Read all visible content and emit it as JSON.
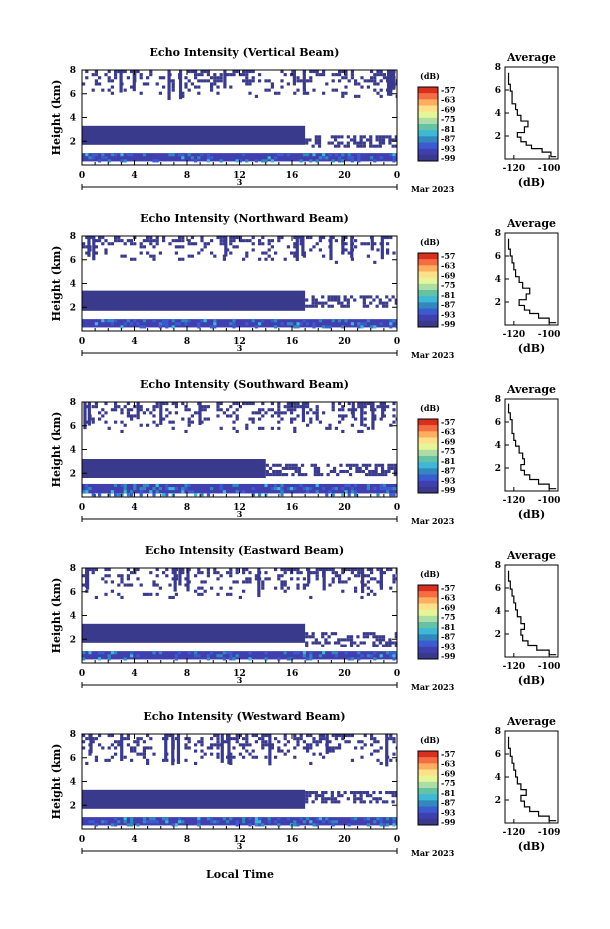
{
  "figure": {
    "xlabel": "Local Time",
    "date_label": "3",
    "month_label": "Mar 2023"
  },
  "colorbar": {
    "unit": "(dB)",
    "ticks": [
      "-57",
      "-63",
      "-69",
      "-75",
      "-81",
      "-87",
      "-93",
      "-99"
    ],
    "colors": [
      "#d7301f",
      "#f46d43",
      "#fdae61",
      "#fee08b",
      "#e6f598",
      "#abdda4",
      "#66c2a5",
      "#3fb7d6",
      "#3288bd",
      "#3b5bd0",
      "#3f3fb0",
      "#3a3a8c"
    ]
  },
  "chart_data": [
    {
      "type": "heatmap",
      "title": "Echo Intensity (Vertical Beam)",
      "xlabel": "",
      "ylabel": "Height (km)",
      "xlim": [
        0,
        24
      ],
      "ylim": [
        0,
        8
      ],
      "xticks": [
        "0",
        "4",
        "8",
        "12",
        "16",
        "20",
        "0"
      ],
      "yticks": [
        "2",
        "4",
        "6",
        "8"
      ],
      "layers": [
        {
          "from_hour": 0,
          "to_hour": 24,
          "y_bottom": 0.3,
          "y_top": 1.0,
          "level": "strong"
        },
        {
          "from_hour": 0,
          "to_hour": 17,
          "y_bottom": 1.7,
          "y_top": 3.3,
          "level": "weak"
        },
        {
          "from_hour": 17,
          "to_hour": 24,
          "y_bottom": 1.6,
          "y_top": 2.5,
          "level": "sparse"
        },
        {
          "from_hour": 0,
          "to_hour": 24,
          "y_bottom": 5.7,
          "y_top": 8.0,
          "level": "sparse"
        }
      ],
      "profile": {
        "title": "Average",
        "xlabel": "(dB)",
        "xticks": [
          "-120",
          "-100"
        ],
        "yticks": [
          "2",
          "4",
          "6",
          "8"
        ],
        "xlim": [
          -125,
          -95
        ],
        "ylim": [
          0,
          8
        ],
        "x": [
          -96,
          -99,
          -104,
          -110,
          -113,
          -116,
          -118,
          -114,
          -112,
          -116,
          -118,
          -119,
          -121,
          -121,
          -122,
          -123
        ],
        "y": [
          0.2,
          0.6,
          0.9,
          1.2,
          1.5,
          1.9,
          2.3,
          2.8,
          3.3,
          3.8,
          4.3,
          4.8,
          5.3,
          5.9,
          6.5,
          7.5
        ]
      }
    },
    {
      "type": "heatmap",
      "title": "Echo Intensity (Northward Beam)",
      "xlabel": "",
      "ylabel": "Height (km)",
      "xlim": [
        0,
        24
      ],
      "ylim": [
        0,
        8
      ],
      "xticks": [
        "0",
        "4",
        "8",
        "12",
        "16",
        "20",
        "0"
      ],
      "yticks": [
        "2",
        "4",
        "6",
        "8"
      ],
      "layers": [
        {
          "from_hour": 0,
          "to_hour": 24,
          "y_bottom": 0.3,
          "y_top": 1.0,
          "level": "strong"
        },
        {
          "from_hour": 0,
          "to_hour": 17,
          "y_bottom": 1.7,
          "y_top": 3.4,
          "level": "weak"
        },
        {
          "from_hour": 17,
          "to_hour": 24,
          "y_bottom": 2.2,
          "y_top": 3.0,
          "level": "sparse"
        },
        {
          "from_hour": 0,
          "to_hour": 24,
          "y_bottom": 5.8,
          "y_top": 8.0,
          "level": "sparse"
        }
      ],
      "profile": {
        "title": "Average",
        "xlabel": "(dB)",
        "xticks": [
          "-120",
          "-100"
        ],
        "yticks": [
          "2",
          "4",
          "6",
          "8"
        ],
        "xlim": [
          -125,
          -95
        ],
        "ylim": [
          0,
          8
        ],
        "x": [
          -96,
          -100,
          -106,
          -111,
          -114,
          -117,
          -113,
          -111,
          -115,
          -117,
          -119,
          -120,
          -121,
          -122,
          -123
        ],
        "y": [
          0.2,
          0.6,
          1.0,
          1.3,
          1.7,
          2.2,
          2.7,
          3.2,
          3.7,
          4.2,
          4.8,
          5.4,
          6.0,
          6.6,
          7.5
        ]
      }
    },
    {
      "type": "heatmap",
      "title": "Echo Intensity (Southward Beam)",
      "xlabel": "",
      "ylabel": "Height (km)",
      "xlim": [
        0,
        24
      ],
      "ylim": [
        0,
        8
      ],
      "xticks": [
        "0",
        "4",
        "8",
        "12",
        "16",
        "20",
        "0"
      ],
      "yticks": [
        "2",
        "4",
        "6",
        "8"
      ],
      "layers": [
        {
          "from_hour": 0,
          "to_hour": 24,
          "y_bottom": 0.3,
          "y_top": 1.1,
          "level": "strong"
        },
        {
          "from_hour": 0,
          "to_hour": 14,
          "y_bottom": 1.6,
          "y_top": 3.2,
          "level": "weak"
        },
        {
          "from_hour": 14,
          "to_hour": 24,
          "y_bottom": 1.8,
          "y_top": 2.8,
          "level": "sparse"
        },
        {
          "from_hour": 0,
          "to_hour": 24,
          "y_bottom": 5.5,
          "y_top": 8.0,
          "level": "sparse"
        }
      ],
      "profile": {
        "title": "Average",
        "xlabel": "(dB)",
        "xticks": [
          "-120",
          "-100"
        ],
        "yticks": [
          "2",
          "4",
          "6",
          "8"
        ],
        "xlim": [
          -125,
          -95
        ],
        "ylim": [
          0,
          8
        ],
        "x": [
          -96,
          -100,
          -106,
          -111,
          -114,
          -116,
          -114,
          -115,
          -117,
          -119,
          -120,
          -121,
          -121,
          -122,
          -123
        ],
        "y": [
          0.2,
          0.6,
          1.0,
          1.4,
          1.8,
          2.3,
          2.8,
          3.3,
          3.9,
          4.4,
          5.0,
          5.6,
          6.2,
          6.8,
          7.6
        ]
      }
    },
    {
      "type": "heatmap",
      "title": "Echo Intensity (Eastward Beam)",
      "xlabel": "",
      "ylabel": "Height (km)",
      "xlim": [
        0,
        24
      ],
      "ylim": [
        0,
        8
      ],
      "xticks": [
        "0",
        "4",
        "8",
        "12",
        "16",
        "20",
        "0"
      ],
      "yticks": [
        "2",
        "4",
        "6",
        "8"
      ],
      "layers": [
        {
          "from_hour": 0,
          "to_hour": 24,
          "y_bottom": 0.3,
          "y_top": 1.0,
          "level": "strong"
        },
        {
          "from_hour": 0,
          "to_hour": 17,
          "y_bottom": 1.7,
          "y_top": 3.3,
          "level": "weak"
        },
        {
          "from_hour": 17,
          "to_hour": 24,
          "y_bottom": 1.5,
          "y_top": 2.6,
          "level": "sparse"
        },
        {
          "from_hour": 0,
          "to_hour": 24,
          "y_bottom": 5.6,
          "y_top": 8.0,
          "level": "sparse"
        }
      ],
      "profile": {
        "title": "Average",
        "xlabel": "(dB)",
        "xticks": [
          "-120",
          "-100"
        ],
        "yticks": [
          "2",
          "4",
          "6",
          "8"
        ],
        "xlim": [
          -125,
          -95
        ],
        "ylim": [
          0,
          8
        ],
        "x": [
          -96,
          -100,
          -107,
          -112,
          -115,
          -116,
          -114,
          -116,
          -118,
          -119,
          -120,
          -121,
          -122,
          -123
        ],
        "y": [
          0.2,
          0.6,
          1.0,
          1.4,
          1.9,
          2.4,
          2.9,
          3.5,
          4.1,
          4.7,
          5.3,
          5.9,
          6.6,
          7.5
        ]
      }
    },
    {
      "type": "heatmap",
      "title": "Echo Intensity (Westward Beam)",
      "xlabel": "",
      "ylabel": "Height (km)",
      "xlim": [
        0,
        24
      ],
      "ylim": [
        0,
        8
      ],
      "xticks": [
        "0",
        "4",
        "8",
        "12",
        "16",
        "20",
        "0"
      ],
      "yticks": [
        "2",
        "4",
        "6",
        "8"
      ],
      "layers": [
        {
          "from_hour": 0,
          "to_hour": 24,
          "y_bottom": 0.3,
          "y_top": 1.0,
          "level": "strong"
        },
        {
          "from_hour": 0,
          "to_hour": 17,
          "y_bottom": 1.7,
          "y_top": 3.3,
          "level": "weak"
        },
        {
          "from_hour": 17,
          "to_hour": 24,
          "y_bottom": 2.4,
          "y_top": 3.2,
          "level": "sparse"
        },
        {
          "from_hour": 0,
          "to_hour": 24,
          "y_bottom": 5.4,
          "y_top": 8.0,
          "level": "sparse"
        }
      ],
      "profile": {
        "title": "Average",
        "xlabel": "(dB)",
        "xticks": [
          "-120",
          "-109"
        ],
        "yticks": [
          "2",
          "4",
          "6",
          "8"
        ],
        "xlim": [
          -125,
          -95
        ],
        "ylim": [
          0,
          8
        ],
        "x": [
          -96,
          -100,
          -106,
          -111,
          -114,
          -116,
          -113,
          -116,
          -118,
          -119,
          -120,
          -121,
          -122,
          -123
        ],
        "y": [
          0.2,
          0.6,
          1.0,
          1.4,
          1.9,
          2.4,
          2.9,
          3.4,
          4.0,
          4.6,
          5.2,
          5.8,
          6.5,
          7.5
        ]
      }
    }
  ]
}
